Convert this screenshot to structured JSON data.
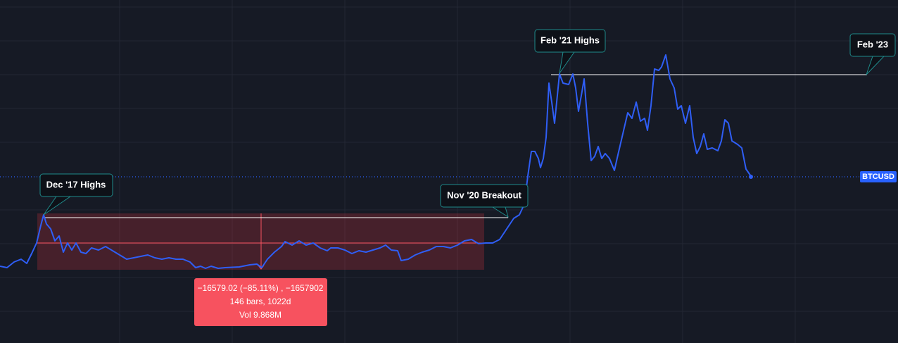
{
  "annotations": {
    "dec17": "Dec '17 Highs",
    "nov20": "Nov '20 Breakout",
    "feb21": "Feb '21 Highs",
    "feb23": "Feb '23"
  },
  "symbol_label": "BTCUSD",
  "measure": {
    "line1": "−16579.02 (−85.11%) , −1657902",
    "line2": "146 bars, 1022d",
    "line3": "Vol 9.868M"
  }
}
